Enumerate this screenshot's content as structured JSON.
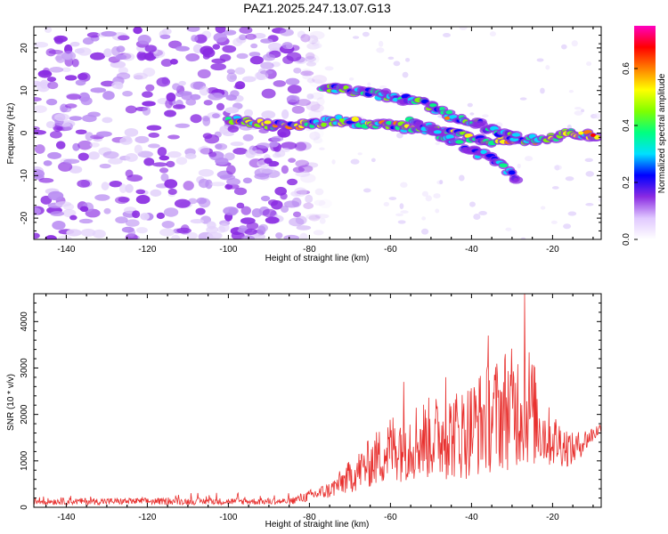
{
  "title": "PAZ1.2025.247.13.07.G13",
  "chart_data": [
    {
      "type": "heatmap",
      "xlabel": "Height of straight line (km)",
      "ylabel": "Frequency (Hz)",
      "xlim": [
        -148,
        -8
      ],
      "ylim": [
        -25,
        25
      ],
      "xticks": [
        -140,
        -120,
        -100,
        -80,
        -60,
        -40,
        -20
      ],
      "yticks": [
        -20,
        -10,
        0,
        10,
        20
      ],
      "colorbar": {
        "label": "Normalized spectral amplitude",
        "range": [
          0,
          0.75
        ],
        "ticks": [
          0.0,
          0.2,
          0.4,
          0.6
        ],
        "colors": [
          "#ffffff",
          "#e0c8ff",
          "#8a2be2",
          "#0000ff",
          "#00e0ff",
          "#00ff80",
          "#80ff00",
          "#ffff00",
          "#ff8000",
          "#ff0000",
          "#ff00c0"
        ]
      },
      "noise_region": {
        "x": [
          -148,
          -80
        ],
        "y": [
          -25,
          25
        ]
      },
      "ridges": [
        {
          "name": "main",
          "points": [
            [
              -100,
              3
            ],
            [
              -90,
              2
            ],
            [
              -80,
              2
            ],
            [
              -72,
              3
            ],
            [
              -65,
              2
            ],
            [
              -60,
              2
            ],
            [
              -55,
              1
            ],
            [
              -50,
              1
            ],
            [
              -45,
              0
            ],
            [
              -40,
              -1
            ],
            [
              -35,
              -2
            ],
            [
              -30,
              -1.5
            ],
            [
              -25,
              -1.5
            ],
            [
              -20,
              -1
            ],
            [
              -15,
              0
            ],
            [
              -8,
              -1
            ]
          ],
          "amplitude": 0.5
        },
        {
          "name": "upper",
          "points": [
            [
              -77,
              11
            ],
            [
              -70,
              10
            ],
            [
              -62,
              9
            ],
            [
              -57,
              8
            ],
            [
              -52,
              7
            ],
            [
              -47,
              5
            ],
            [
              -43,
              3
            ],
            [
              -38,
              2
            ],
            [
              -33,
              0
            ],
            [
              -28,
              -1
            ]
          ],
          "amplitude": 0.38
        },
        {
          "name": "lower",
          "points": [
            [
              -55,
              3
            ],
            [
              -50,
              1
            ],
            [
              -45,
              -2
            ],
            [
              -40,
              -4
            ],
            [
              -35,
              -6
            ],
            [
              -32,
              -8
            ],
            [
              -28,
              -12
            ]
          ],
          "amplitude": 0.3
        }
      ]
    },
    {
      "type": "line",
      "xlabel": "Height of straight line (km)",
      "ylabel": "SNR (10 * v/v)",
      "xlim": [
        -148,
        -8
      ],
      "ylim": [
        0,
        4600
      ],
      "xticks": [
        -140,
        -120,
        -100,
        -80,
        -60,
        -40,
        -20
      ],
      "yticks": [
        0,
        1000,
        2000,
        3000,
        4000
      ],
      "color": "#e8302e",
      "envelope": [
        {
          "x": -148,
          "base": 120,
          "spread": 120
        },
        {
          "x": -85,
          "base": 120,
          "spread": 120
        },
        {
          "x": -75,
          "base": 350,
          "spread": 300
        },
        {
          "x": -65,
          "base": 900,
          "spread": 900
        },
        {
          "x": -58,
          "base": 1300,
          "spread": 1400
        },
        {
          "x": -50,
          "base": 1400,
          "spread": 1500
        },
        {
          "x": -42,
          "base": 1500,
          "spread": 1700
        },
        {
          "x": -36,
          "base": 1800,
          "spread": 2000
        },
        {
          "x": -30,
          "base": 2000,
          "spread": 2200
        },
        {
          "x": -26,
          "base": 2100,
          "spread": 2300
        },
        {
          "x": -22,
          "base": 1500,
          "spread": 1200
        },
        {
          "x": -15,
          "base": 1200,
          "spread": 600
        },
        {
          "x": -8,
          "base": 1700,
          "spread": 200
        }
      ],
      "peaks": [
        {
          "x": -26.9,
          "y": 4600
        },
        {
          "x": -35.8,
          "y": 3700
        },
        {
          "x": -56.7,
          "y": 2700
        },
        {
          "x": -46.4,
          "y": 2800
        },
        {
          "x": -31.6,
          "y": 3300
        }
      ]
    }
  ]
}
